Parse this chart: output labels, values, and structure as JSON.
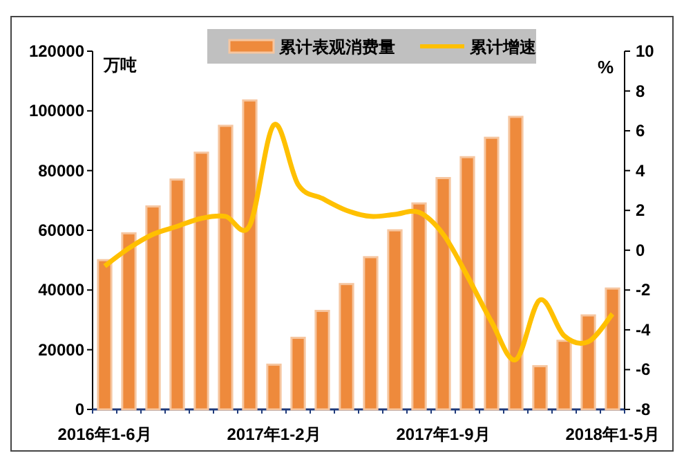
{
  "chart_data": {
    "type": "bar",
    "categories": [
      "2016年1-6月",
      null,
      null,
      null,
      null,
      null,
      null,
      "2017年1-2月",
      null,
      null,
      null,
      null,
      null,
      null,
      "2017年1-9月",
      null,
      null,
      null,
      null,
      null,
      null,
      "2018年1-5月"
    ],
    "series": [
      {
        "name": "累计表观消费量",
        "color": "#ee8a3c",
        "values": [
          50000,
          59000,
          68000,
          77000,
          86000,
          95000,
          103500,
          15000,
          24000,
          33000,
          42000,
          51000,
          60000,
          69000,
          77500,
          84500,
          91000,
          98000,
          14500,
          23000,
          31500,
          40500
        ]
      },
      {
        "name": "累计增速",
        "type": "line",
        "axis": "y2",
        "color": "#ffc000",
        "values": [
          -0.8,
          0.1,
          0.8,
          1.2,
          1.6,
          1.7,
          1.25,
          6.3,
          3.3,
          2.6,
          2.0,
          1.7,
          1.8,
          1.9,
          0.8,
          -1.3,
          -3.6,
          -5.5,
          -2.5,
          -4.3,
          -4.6,
          -3.2
        ]
      }
    ],
    "ylabel": "万吨",
    "y2label": "%",
    "ylim": [
      0,
      120000
    ],
    "yticks": [
      0,
      20000,
      40000,
      60000,
      80000,
      100000,
      120000
    ],
    "y2lim": [
      -8,
      10
    ],
    "y2ticks": [
      -8,
      -6,
      -4,
      -2,
      0,
      2,
      4,
      6,
      8,
      10
    ],
    "legend": "top",
    "grid": false,
    "marker": "none"
  }
}
